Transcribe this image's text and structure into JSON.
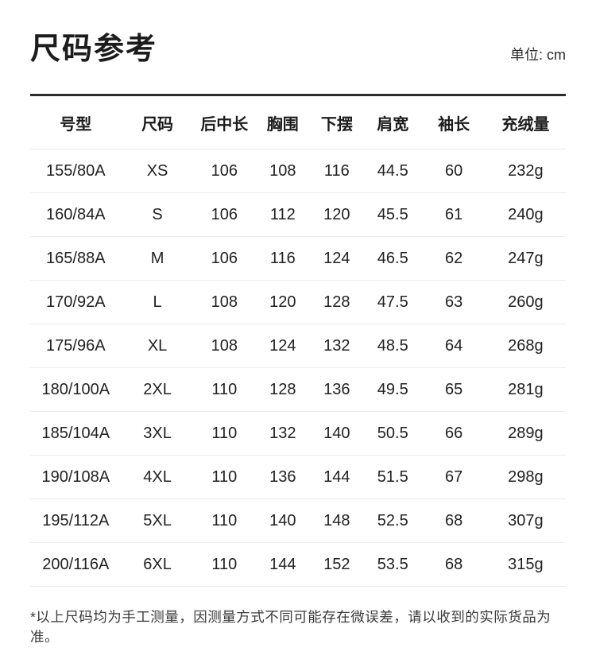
{
  "header": {
    "title": "尺码参考",
    "unit_label": "单位: cm"
  },
  "chart_data": {
    "type": "table",
    "title": "尺码参考",
    "unit": "cm",
    "columns": [
      "号型",
      "尺码",
      "后中长",
      "胸围",
      "下摆",
      "肩宽",
      "袖长",
      "充绒量"
    ],
    "rows": [
      [
        "155/80A",
        "XS",
        "106",
        "108",
        "116",
        "44.5",
        "60",
        "232g"
      ],
      [
        "160/84A",
        "S",
        "106",
        "112",
        "120",
        "45.5",
        "61",
        "240g"
      ],
      [
        "165/88A",
        "M",
        "106",
        "116",
        "124",
        "46.5",
        "62",
        "247g"
      ],
      [
        "170/92A",
        "L",
        "108",
        "120",
        "128",
        "47.5",
        "63",
        "260g"
      ],
      [
        "175/96A",
        "XL",
        "108",
        "124",
        "132",
        "48.5",
        "64",
        "268g"
      ],
      [
        "180/100A",
        "2XL",
        "110",
        "128",
        "136",
        "49.5",
        "65",
        "281g"
      ],
      [
        "185/104A",
        "3XL",
        "110",
        "132",
        "140",
        "50.5",
        "66",
        "289g"
      ],
      [
        "190/108A",
        "4XL",
        "110",
        "136",
        "144",
        "51.5",
        "67",
        "298g"
      ],
      [
        "195/112A",
        "5XL",
        "110",
        "140",
        "148",
        "52.5",
        "68",
        "307g"
      ],
      [
        "200/116A",
        "6XL",
        "110",
        "144",
        "152",
        "53.5",
        "68",
        "315g"
      ]
    ]
  },
  "footnote": {
    "text": "*以上尺码均为手工测量，因测量方式不同可能存在微误差，请以收到的实际货品为准。"
  }
}
